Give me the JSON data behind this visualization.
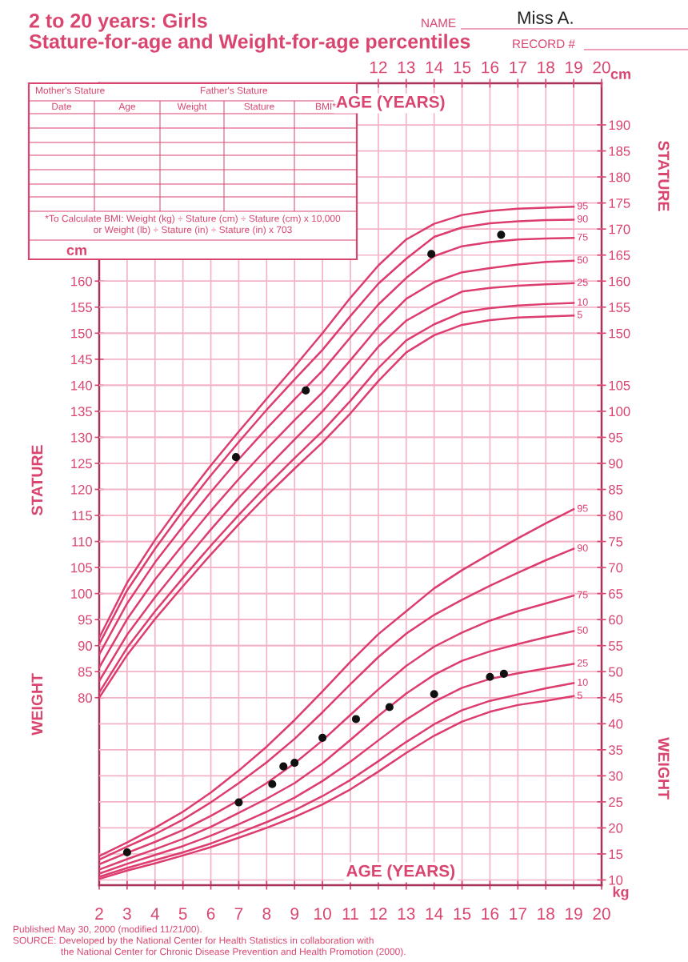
{
  "chart_data": {
    "type": "line",
    "title": "2 to 20 years: Girls",
    "subtitle": "Stature-for-age and Weight-for-age percentiles",
    "xlabel": "AGE (YEARS)",
    "x2label": "AGE (YEARS)",
    "ylabel": "STATURE",
    "y2label": "WEIGHT",
    "annotations": [
      "NAME",
      "Miss A.",
      "RECORD #",
      "Mother's Stature",
      "Father's Stature",
      "Date",
      "Age",
      "Weight",
      "Stature",
      "BMI*",
      "*To Calculate BMI: Weight (kg) ÷ Stature (cm) ÷ Stature (cm) x 10,000",
      "or Weight (lb) ÷ Stature (in) ÷ Stature (in) x 703",
      "Published May 30, 2000 (modified 11/21/00).",
      "SOURCE: Developed by the National Center for Health Statistics in collaboration with",
      "the National Center for Chronic Disease Prevention and Health Promotion (2000).",
      "cm",
      "cm",
      "kg",
      "STATURE",
      "WEIGHT"
    ],
    "x": [
      2,
      3,
      4,
      5,
      6,
      7,
      8,
      9,
      10,
      11,
      12,
      13,
      14,
      15,
      16,
      17,
      18,
      19
    ],
    "xlim": [
      2,
      20
    ],
    "xticks": [
      2,
      3,
      4,
      5,
      6,
      7,
      8,
      9,
      10,
      11,
      12,
      13,
      14,
      15,
      16,
      17,
      18,
      19,
      20
    ],
    "x2lim": [
      2,
      20
    ],
    "x2ticks": [
      12,
      13,
      14,
      15,
      16,
      17,
      18,
      19,
      20
    ],
    "ylim": [
      44,
      198
    ],
    "yticks": [
      80,
      85,
      90,
      95,
      100,
      105,
      110,
      115,
      120,
      125,
      130,
      135,
      140,
      145,
      150,
      155,
      160
    ],
    "y3lim": [
      44,
      198
    ],
    "y3ticks": [
      150,
      155,
      160,
      165,
      170,
      175,
      180,
      185,
      190
    ],
    "y2lim": [
      9,
      163
    ],
    "y2ticks": [
      10,
      15,
      20,
      25,
      30,
      35,
      40,
      45,
      50,
      55,
      60,
      65,
      70,
      75,
      80,
      85,
      90,
      95,
      100,
      105
    ],
    "grid": true,
    "series": [
      {
        "name": "95",
        "color": "#dc3d6e",
        "values": [
          91.5,
          102.1,
          110.3,
          117.7,
          124.6,
          131.1,
          137.4,
          143.6,
          150.0,
          156.8,
          163.0,
          168.0,
          171.0,
          172.7,
          173.5,
          173.9,
          174.1,
          174.3
        ]
      },
      {
        "name": "90",
        "color": "#dc3d6e",
        "values": [
          90.3,
          100.6,
          108.6,
          115.9,
          122.7,
          129.1,
          135.3,
          141.1,
          146.8,
          153.3,
          159.5,
          164.3,
          168.5,
          170.3,
          171.1,
          171.5,
          171.7,
          171.8
        ]
      },
      {
        "name": "75",
        "color": "#dc3d6e",
        "values": [
          88.3,
          98.1,
          106.0,
          112.9,
          119.5,
          125.8,
          131.7,
          137.3,
          142.8,
          149.2,
          155.5,
          160.6,
          164.8,
          166.7,
          167.5,
          168.0,
          168.2,
          168.3
        ]
      },
      {
        "name": "50",
        "color": "#dc3d6e",
        "values": [
          85.8,
          95.1,
          102.7,
          109.4,
          115.9,
          122.0,
          127.8,
          133.3,
          138.6,
          144.8,
          151.2,
          156.6,
          159.8,
          161.7,
          162.5,
          163.2,
          163.7,
          163.9
        ]
      },
      {
        "name": "25",
        "color": "#dc3d6e",
        "values": [
          83.2,
          92.1,
          99.3,
          105.9,
          112.3,
          118.4,
          124.1,
          129.6,
          135.0,
          141.0,
          147.4,
          152.4,
          155.4,
          158.0,
          158.7,
          159.1,
          159.4,
          159.6
        ]
      },
      {
        "name": "10",
        "color": "#dc3d6e",
        "values": [
          81.0,
          89.6,
          96.6,
          103.0,
          109.2,
          115.1,
          120.7,
          126.0,
          131.2,
          137.0,
          143.3,
          148.6,
          151.7,
          154.0,
          154.8,
          155.3,
          155.6,
          155.8
        ]
      },
      {
        "name": "5",
        "color": "#dc3d6e",
        "values": [
          80.0,
          88.2,
          95.1,
          101.4,
          107.5,
          113.3,
          118.8,
          124.0,
          129.0,
          134.6,
          140.8,
          146.3,
          149.6,
          151.6,
          152.5,
          153.0,
          153.2,
          153.4
        ]
      },
      {
        "name": "95",
        "color": "#dc3d6e",
        "axis": "y2",
        "values": [
          14.6,
          17.2,
          20.0,
          23.1,
          26.8,
          31.0,
          35.6,
          40.7,
          46.2,
          51.9,
          57.2,
          61.6,
          66.0,
          69.5,
          72.6,
          75.6,
          78.5,
          81.2
        ]
      },
      {
        "name": "90",
        "color": "#dc3d6e",
        "axis": "y2",
        "values": [
          13.9,
          16.4,
          18.8,
          21.6,
          24.9,
          28.6,
          32.6,
          37.1,
          42.2,
          47.6,
          52.8,
          57.3,
          60.9,
          63.8,
          66.5,
          69.0,
          71.4,
          73.6
        ]
      },
      {
        "name": "75",
        "color": "#dc3d6e",
        "axis": "y2",
        "values": [
          13.0,
          15.2,
          17.3,
          19.6,
          22.3,
          25.3,
          28.6,
          32.4,
          36.8,
          41.7,
          46.6,
          51.1,
          54.8,
          57.5,
          59.8,
          61.6,
          63.1,
          64.6
        ]
      },
      {
        "name": "50",
        "color": "#dc3d6e",
        "axis": "y2",
        "values": [
          12.0,
          14.0,
          15.9,
          17.9,
          20.2,
          22.9,
          25.6,
          28.6,
          32.4,
          36.9,
          41.5,
          45.8,
          49.4,
          52.1,
          53.9,
          55.3,
          56.6,
          57.8
        ]
      },
      {
        "name": "25",
        "color": "#dc3d6e",
        "axis": "y2",
        "values": [
          11.2,
          13.1,
          14.8,
          16.5,
          18.5,
          20.7,
          23.1,
          25.8,
          29.0,
          32.7,
          36.8,
          40.8,
          44.2,
          46.9,
          48.6,
          49.7,
          50.6,
          51.5
        ]
      },
      {
        "name": "10",
        "color": "#dc3d6e",
        "axis": "y2",
        "values": [
          10.6,
          12.3,
          13.8,
          15.3,
          17.0,
          19.0,
          21.1,
          23.4,
          26.1,
          29.2,
          32.8,
          36.5,
          39.9,
          42.6,
          44.4,
          45.6,
          46.8,
          47.8
        ]
      },
      {
        "name": "5",
        "color": "#dc3d6e",
        "axis": "y2",
        "values": [
          10.2,
          11.8,
          13.2,
          14.7,
          16.3,
          18.1,
          20.0,
          22.1,
          24.5,
          27.4,
          30.8,
          34.4,
          37.7,
          40.4,
          42.3,
          43.6,
          44.4,
          45.3
        ]
      },
      {
        "type": "scatter",
        "marker": "circle",
        "color": "#111111",
        "x": [
          6.9,
          9.4,
          13.9,
          16.4
        ],
        "values": [
          126.2,
          139.0,
          165.2,
          168.9
        ]
      },
      {
        "type": "scatter",
        "marker": "circle",
        "color": "#111111",
        "axis": "y2",
        "x": [
          3.0,
          7.0,
          8.2,
          8.6,
          9.0,
          10.0,
          11.2,
          12.4,
          14.0,
          16.0,
          16.5
        ],
        "values": [
          15.3,
          24.9,
          28.4,
          31.8,
          32.5,
          37.3,
          40.9,
          43.2,
          45.7,
          49.0,
          49.6
        ]
      }
    ]
  }
}
